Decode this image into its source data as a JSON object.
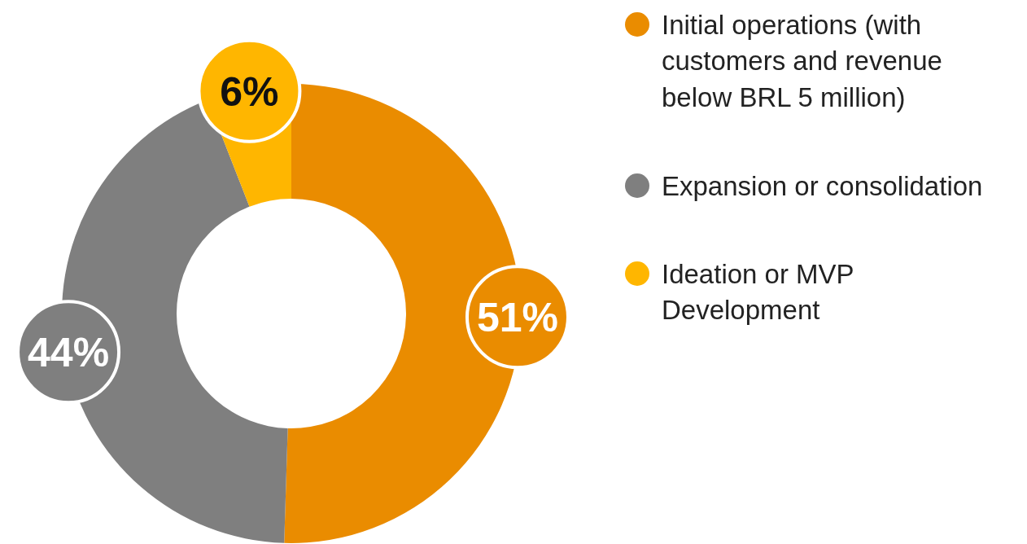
{
  "chart_data": {
    "type": "donut",
    "categories": [
      "Initial operations (with customers and revenue below BRL 5 million)",
      "Expansion or consolidation",
      "Ideation or MVP Development"
    ],
    "values": [
      51,
      44,
      6
    ],
    "colors": [
      "#ea8c00",
      "#7f7f7f",
      "#ffb600"
    ],
    "value_labels": [
      "51%",
      "44%",
      "6%"
    ],
    "legend": "right"
  }
}
